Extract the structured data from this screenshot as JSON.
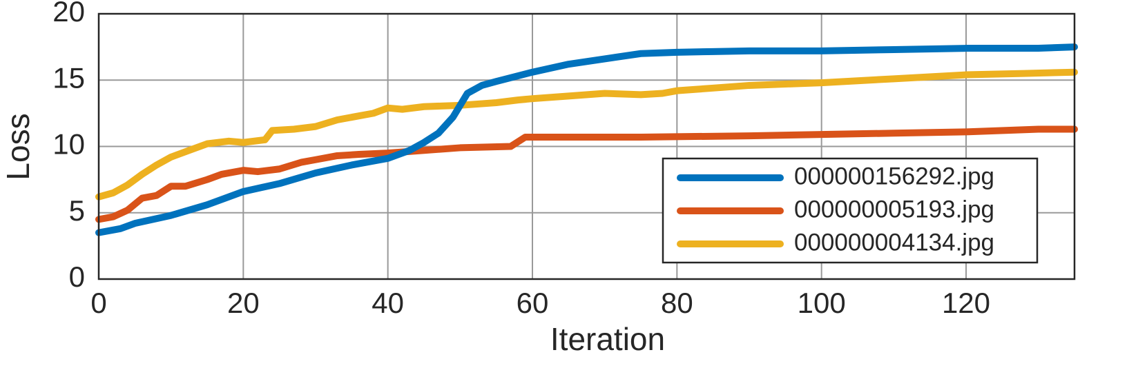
{
  "chart_data": {
    "type": "line",
    "xlabel": "Iteration",
    "ylabel": "Loss",
    "xlim": [
      0,
      135
    ],
    "ylim": [
      0,
      20
    ],
    "xticks": [
      0,
      20,
      40,
      60,
      80,
      100,
      120
    ],
    "yticks": [
      0,
      5,
      10,
      15,
      20
    ],
    "grid": true,
    "legend": "lower right",
    "series": [
      {
        "name": "000000156292.jpg",
        "color": "#0072bd",
        "x": [
          0,
          3,
          5,
          10,
          15,
          20,
          25,
          30,
          35,
          40,
          43,
          45,
          47,
          49,
          51,
          53,
          55,
          60,
          65,
          70,
          75,
          80,
          85,
          90,
          100,
          110,
          120,
          130,
          135
        ],
        "values": [
          3.5,
          3.8,
          4.2,
          4.8,
          5.6,
          6.6,
          7.2,
          8.0,
          8.6,
          9.1,
          9.7,
          10.3,
          11.0,
          12.2,
          14.0,
          14.6,
          14.9,
          15.6,
          16.2,
          16.6,
          17.0,
          17.1,
          17.15,
          17.2,
          17.2,
          17.3,
          17.4,
          17.4,
          17.5
        ]
      },
      {
        "name": "000000005193.jpg",
        "color": "#d95319",
        "x": [
          0,
          2,
          4,
          6,
          8,
          10,
          12,
          15,
          17,
          20,
          22,
          25,
          28,
          30,
          33,
          36,
          40,
          45,
          50,
          57,
          59,
          65,
          75,
          90,
          100,
          110,
          120,
          130,
          135
        ],
        "values": [
          4.5,
          4.7,
          5.2,
          6.1,
          6.3,
          7.0,
          7.0,
          7.5,
          7.9,
          8.2,
          8.1,
          8.3,
          8.8,
          9.0,
          9.3,
          9.4,
          9.5,
          9.7,
          9.9,
          10.0,
          10.7,
          10.7,
          10.7,
          10.8,
          10.9,
          11.0,
          11.1,
          11.3,
          11.3
        ]
      },
      {
        "name": "000000004134.jpg",
        "color": "#edb120",
        "x": [
          0,
          2,
          4,
          6,
          8,
          10,
          13,
          15,
          18,
          20,
          23,
          24,
          27,
          30,
          33,
          36,
          38,
          40,
          42,
          45,
          50,
          55,
          58,
          60,
          65,
          70,
          75,
          78,
          80,
          85,
          90,
          100,
          110,
          120,
          128,
          135
        ],
        "values": [
          6.2,
          6.5,
          7.1,
          7.9,
          8.6,
          9.2,
          9.8,
          10.2,
          10.4,
          10.3,
          10.5,
          11.2,
          11.3,
          11.5,
          12.0,
          12.3,
          12.5,
          12.9,
          12.8,
          13.0,
          13.1,
          13.3,
          13.5,
          13.6,
          13.8,
          14.0,
          13.9,
          14.0,
          14.2,
          14.4,
          14.6,
          14.8,
          15.1,
          15.4,
          15.5,
          15.6
        ]
      }
    ]
  }
}
